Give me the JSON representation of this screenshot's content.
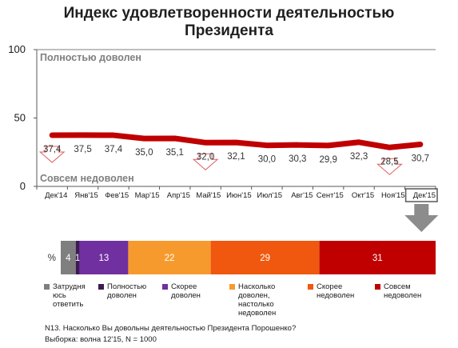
{
  "title": {
    "line1": "Индекс удовлетворенности деятельностью",
    "line2": "Президента"
  },
  "chart_data": [
    {
      "type": "line",
      "title": "Индекс удовлетворенности деятельностью Президента",
      "categories": [
        "Дек'14",
        "Янв'15",
        "Фев'15",
        "Мар'15",
        "Апр'15",
        "Май'15",
        "Июн'15",
        "Июл'15",
        "Авг'15",
        "Сент'15",
        "Окт'15",
        "Ноя'15",
        "Дек'15"
      ],
      "series": [
        {
          "values": [
            37.4,
            37.5,
            37.4,
            35.0,
            35.1,
            32.0,
            32.1,
            30.0,
            30.3,
            29.9,
            32.3,
            28.5,
            30.7
          ],
          "color": "#c00000"
        }
      ],
      "value_labels": [
        "37,4",
        "37,5",
        "37,4",
        "35,0",
        "35,1",
        "32,0",
        "32,1",
        "30,0",
        "30,3",
        "29,9",
        "32,3",
        "28,5",
        "30,7"
      ],
      "ylim": [
        0,
        100
      ],
      "yticks": [
        "0",
        "50",
        "100"
      ],
      "band_labels": {
        "top": "Полностью доволен",
        "bottom": "Совсем недоволен"
      },
      "highlighted_category": "Дек'15",
      "down_arrows_at": [
        "Дек'14",
        "Май'15",
        "Ноя'15"
      ],
      "grid": false
    },
    {
      "type": "bar",
      "orientation": "horizontal-stacked",
      "unit_label": "%",
      "segments": [
        {
          "name": "Затрудняюсь ответить",
          "value": 4,
          "label": "4",
          "color": "#7f7f7f"
        },
        {
          "name": "Полностью доволен",
          "value": 1,
          "label": "1",
          "color": "#3d1a55"
        },
        {
          "name": "Скорее доволен",
          "value": 13,
          "label": "13",
          "color": "#7030a0"
        },
        {
          "name": "Насколько доволен, настолько недоволен",
          "value": 22,
          "label": "22",
          "color": "#f79a2e"
        },
        {
          "name": "Скорее недоволен",
          "value": 29,
          "label": "29",
          "color": "#f0580f"
        },
        {
          "name": "Совсем недоволен",
          "value": 31,
          "label": "31",
          "color": "#c00000"
        }
      ]
    }
  ],
  "legend": [
    {
      "lines": [
        "Затрудня",
        "юсь",
        "ответить"
      ],
      "color": "#7f7f7f"
    },
    {
      "lines": [
        "Полностью",
        "доволен"
      ],
      "color": "#3d1a55"
    },
    {
      "lines": [
        "Скорее",
        "доволен"
      ],
      "color": "#7030a0"
    },
    {
      "lines": [
        "Насколько",
        "доволен,",
        "настолько",
        "недоволен"
      ],
      "color": "#f79a2e"
    },
    {
      "lines": [
        "Скорее",
        "недоволен"
      ],
      "color": "#f0580f"
    },
    {
      "lines": [
        "Совсем",
        "недоволен"
      ],
      "color": "#c00000"
    }
  ],
  "footnote": {
    "question": "N13. Насколько Вы довольны деятельностью Президента Порошенко?",
    "sample": "Выборка: волна 12'15, N = 1000"
  }
}
